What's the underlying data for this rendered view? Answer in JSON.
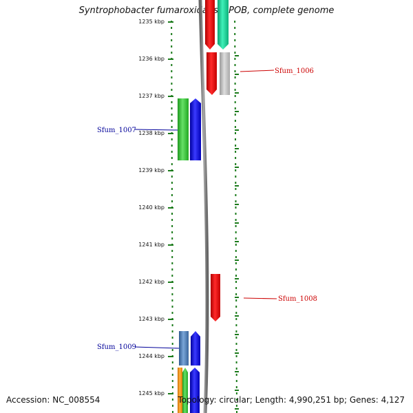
{
  "title": "Syntrophobacter fumaroxidans MPOB, complete genome",
  "accession": "Accession: NC_008554",
  "topology": "Topology: circular; Length: 4,990,251 bp; Genes: 4,127",
  "ruler": {
    "labels": [
      "1235 kbp",
      "1236 kbp",
      "1237 kbp",
      "1238 kbp",
      "1239 kbp",
      "1240 kbp",
      "1241 kbp",
      "1242 kbp",
      "1243 kbp",
      "1244 kbp",
      "1245 kbp"
    ]
  },
  "gene_labels": [
    {
      "id": "Sfum_1006",
      "text": "Sfum_1006",
      "color": "#cc0000"
    },
    {
      "id": "Sfum_1007",
      "text": "Sfum_1007",
      "color": "#000099"
    },
    {
      "id": "Sfum_1008",
      "text": "Sfum_1008",
      "color": "#cc0000"
    },
    {
      "id": "Sfum_1009",
      "text": "Sfum_1009",
      "color": "#000099"
    }
  ],
  "colors": {
    "ruler_tick": "#1a7a1a",
    "backbone": "#8a8a8a",
    "red": "#ee0000",
    "teal": "#11dd99",
    "gray": "#bbbbbb",
    "green": "#33cc33",
    "blue": "#0000ee",
    "steelblue": "#4a7ab8",
    "orange": "#ff9900"
  }
}
